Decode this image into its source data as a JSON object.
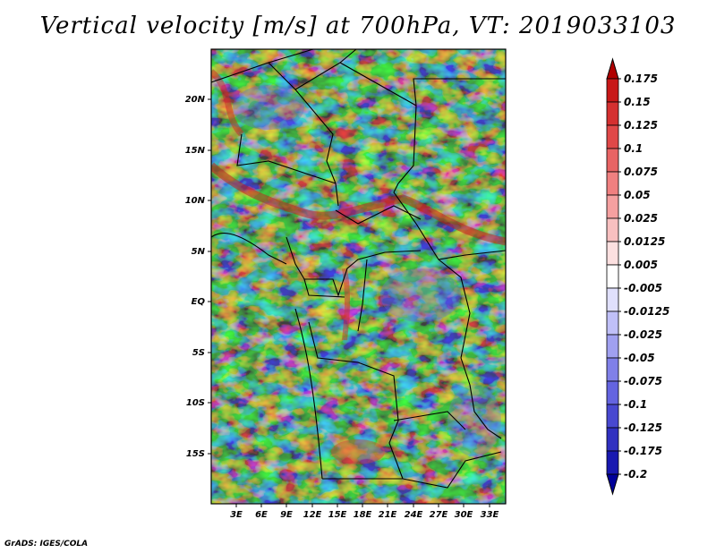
{
  "title": "Vertical velocity [m/s] at 700hPa, VT: 2019033103",
  "footer": "GrADS: IGES/COLA",
  "map": {
    "lat_labels": [
      "20N",
      "15N",
      "10N",
      "5N",
      "EQ",
      "5S",
      "10S",
      "15S"
    ],
    "lon_labels": [
      "3E",
      "6E",
      "9E",
      "12E",
      "15E",
      "18E",
      "21E",
      "24E",
      "27E",
      "30E",
      "33E"
    ]
  },
  "colorbar": {
    "labels": [
      "0.175",
      "0.15",
      "0.125",
      "0.1",
      "0.075",
      "0.05",
      "0.025",
      "0.0125",
      "0.005",
      "-0.005",
      "-0.0125",
      "-0.025",
      "-0.05",
      "-0.075",
      "-0.1",
      "-0.125",
      "-0.175",
      "-0.2"
    ],
    "colors": [
      "#b00000",
      "#c81818",
      "#d53030",
      "#e04848",
      "#e86464",
      "#f08080",
      "#f5a0a0",
      "#f8c0c0",
      "#fce0e0",
      "#ffffff",
      "#e0e0fc",
      "#c0c0f8",
      "#a0a0f0",
      "#8080e8",
      "#6464e0",
      "#4848d0",
      "#3030c0",
      "#1818b0",
      "#00009a"
    ]
  }
}
